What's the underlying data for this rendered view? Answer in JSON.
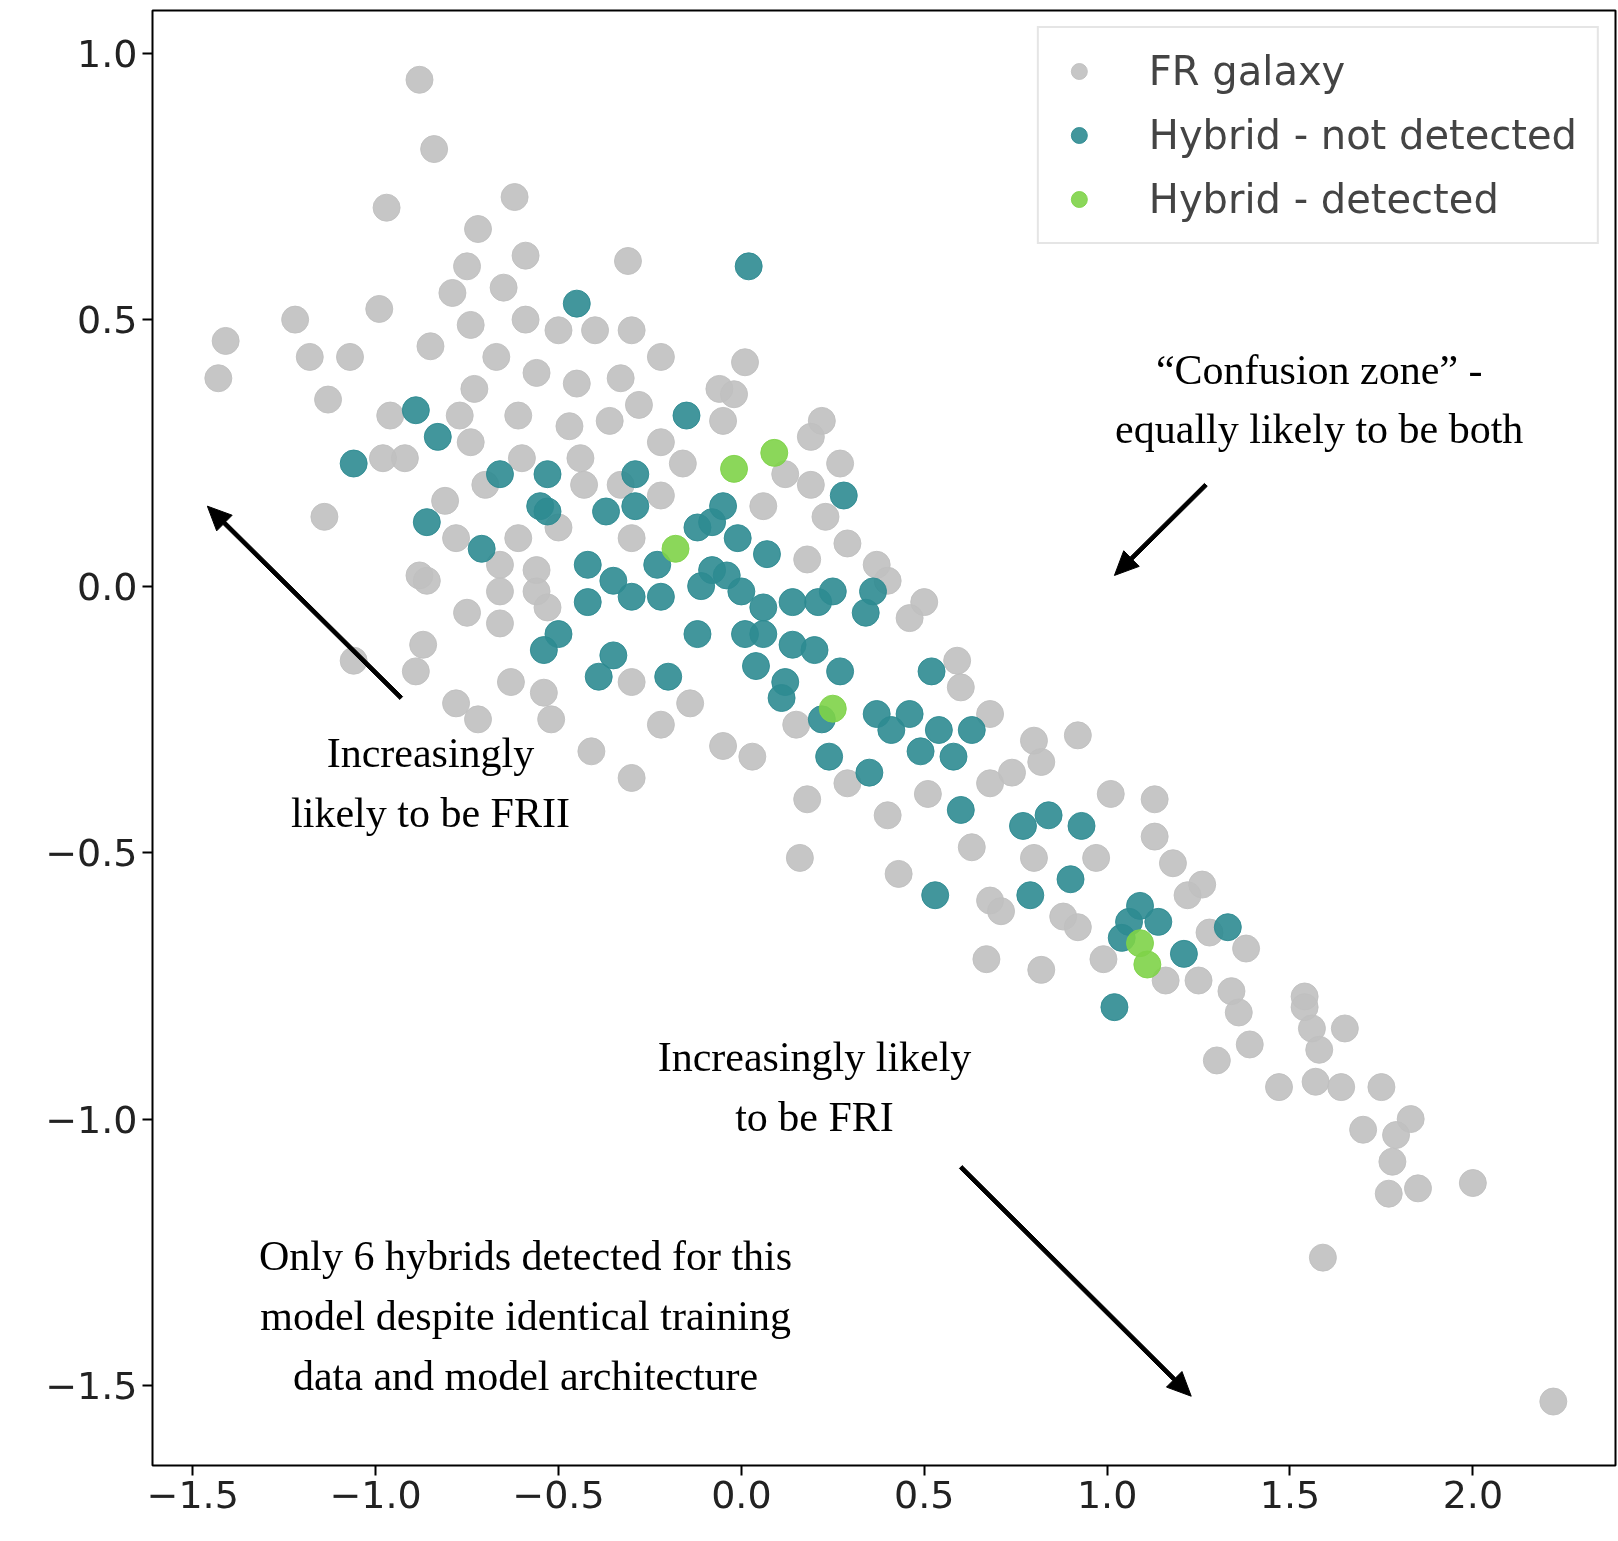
{
  "chart_data": {
    "type": "scatter",
    "xlim": [
      -1.61,
      2.39
    ],
    "ylim": [
      -1.65,
      1.08
    ],
    "xticks": [
      {
        "value": -1.5,
        "label": "−1.5"
      },
      {
        "value": -1.0,
        "label": "−1.0"
      },
      {
        "value": -0.5,
        "label": "−0.5"
      },
      {
        "value": 0.0,
        "label": "0.0"
      },
      {
        "value": 0.5,
        "label": "0.5"
      },
      {
        "value": 1.0,
        "label": "1.0"
      },
      {
        "value": 1.5,
        "label": "1.5"
      },
      {
        "value": 2.0,
        "label": "2.0"
      }
    ],
    "yticks": [
      {
        "value": -1.5,
        "label": "−1.5"
      },
      {
        "value": -1.0,
        "label": "−1.0"
      },
      {
        "value": -0.5,
        "label": "−0.5"
      },
      {
        "value": 0.0,
        "label": "0.0"
      },
      {
        "value": 0.5,
        "label": "0.5"
      },
      {
        "value": 1.0,
        "label": "1.0"
      }
    ],
    "grid": false,
    "legend": "top right",
    "marker": "circle",
    "annotations": [
      "“Confusion zone” -\nequally likely to be both",
      "Increasingly\nlikely to be FRII",
      "Increasingly likely\nto be FRI",
      "Only 6 hybrids detected for this\nmodel despite identical training\ndata and model architecture"
    ],
    "series": [
      {
        "name": "FR galaxy",
        "color": "#c0c0c0",
        "x": [
          -0.88,
          -0.84,
          -0.97,
          -0.62,
          -0.72,
          -0.59,
          -0.31,
          -0.75,
          -0.79,
          -0.65,
          -1.22,
          -0.99,
          -1.41,
          -1.43,
          -1.18,
          -1.07,
          -1.13,
          -0.85,
          -0.74,
          -0.59,
          -0.5,
          -0.4,
          -0.3,
          -0.22,
          0.01,
          -0.67,
          -0.56,
          -0.45,
          -0.33,
          -0.73,
          -0.96,
          -0.77,
          -0.61,
          -0.47,
          -0.36,
          -0.28,
          -0.06,
          -0.02,
          -0.05,
          -0.22,
          0.22,
          0.19,
          0.27,
          -0.92,
          -0.98,
          -0.74,
          -0.6,
          -0.44,
          -0.16,
          0.12,
          0.19,
          -0.81,
          -0.7,
          -1.14,
          -0.43,
          -0.33,
          -0.22,
          0.06,
          0.23,
          -0.78,
          -0.61,
          -0.5,
          -0.3,
          0.29,
          -0.88,
          -0.86,
          -0.66,
          -0.56,
          0.18,
          0.37,
          0.4,
          -0.66,
          -0.56,
          -0.75,
          -0.66,
          -0.53,
          0.5,
          0.46,
          -0.87,
          -1.06,
          -0.89,
          -0.78,
          -0.72,
          -0.63,
          -0.54,
          -0.52,
          -0.41,
          -0.3,
          -0.3,
          -0.22,
          -0.14,
          -0.05,
          0.03,
          0.15,
          0.59,
          0.6,
          0.68,
          0.8,
          0.92,
          0.18,
          0.16,
          0.29,
          0.4,
          0.43,
          0.51,
          0.68,
          0.74,
          0.82,
          1.01,
          1.13,
          0.63,
          0.8,
          0.97,
          1.13,
          1.18,
          0.68,
          0.71,
          0.88,
          1.22,
          1.26,
          0.67,
          0.82,
          0.92,
          0.99,
          1.28,
          1.38,
          1.16,
          1.25,
          1.34,
          1.36,
          1.39,
          1.3,
          1.54,
          1.54,
          1.56,
          1.65,
          1.58,
          1.47,
          1.57,
          1.64,
          1.75,
          1.83,
          1.7,
          1.79,
          1.78,
          1.77,
          1.85,
          2.0,
          1.59,
          2.22
        ],
        "values": [
          0.95,
          0.82,
          0.71,
          0.73,
          0.67,
          0.62,
          0.61,
          0.6,
          0.55,
          0.56,
          0.5,
          0.52,
          0.46,
          0.39,
          0.43,
          0.43,
          0.35,
          0.45,
          0.49,
          0.5,
          0.48,
          0.48,
          0.48,
          0.43,
          0.42,
          0.43,
          0.4,
          0.38,
          0.39,
          0.37,
          0.32,
          0.32,
          0.32,
          0.3,
          0.31,
          0.34,
          0.37,
          0.36,
          0.31,
          0.27,
          0.31,
          0.28,
          0.23,
          0.24,
          0.24,
          0.27,
          0.24,
          0.24,
          0.23,
          0.21,
          0.19,
          0.16,
          0.19,
          0.13,
          0.19,
          0.19,
          0.17,
          0.15,
          0.13,
          0.09,
          0.09,
          0.11,
          0.09,
          0.08,
          0.02,
          0.01,
          0.04,
          0.03,
          0.05,
          0.04,
          0.01,
          -0.01,
          -0.01,
          -0.05,
          -0.07,
          -0.04,
          -0.03,
          -0.06,
          -0.11,
          -0.14,
          -0.16,
          -0.22,
          -0.25,
          -0.18,
          -0.2,
          -0.25,
          -0.31,
          -0.18,
          -0.36,
          -0.26,
          -0.22,
          -0.3,
          -0.32,
          -0.26,
          -0.14,
          -0.19,
          -0.24,
          -0.29,
          -0.28,
          -0.4,
          -0.51,
          -0.37,
          -0.43,
          -0.54,
          -0.39,
          -0.37,
          -0.35,
          -0.33,
          -0.39,
          -0.4,
          -0.49,
          -0.51,
          -0.51,
          -0.47,
          -0.52,
          -0.59,
          -0.61,
          -0.62,
          -0.58,
          -0.56,
          -0.7,
          -0.72,
          -0.64,
          -0.7,
          -0.65,
          -0.68,
          -0.74,
          -0.74,
          -0.76,
          -0.8,
          -0.86,
          -0.89,
          -0.77,
          -0.79,
          -0.83,
          -0.83,
          -0.87,
          -0.94,
          -0.93,
          -0.94,
          -0.94,
          -1.0,
          -1.02,
          -1.03,
          -1.08,
          -1.14,
          -1.13,
          -1.12,
          -1.26,
          -1.53
        ]
      },
      {
        "name": "Hybrid - not detected",
        "color": "#2e8b91",
        "x": [
          0.02,
          -0.45,
          -0.89,
          -0.83,
          -1.06,
          -0.86,
          -0.71,
          -0.66,
          -0.53,
          -0.55,
          -0.53,
          -0.15,
          -0.29,
          -0.37,
          -0.29,
          -0.42,
          -0.42,
          -0.35,
          -0.3,
          -0.23,
          -0.22,
          -0.12,
          -0.08,
          -0.05,
          -0.01,
          0.07,
          -0.08,
          -0.04,
          -0.11,
          0.0,
          0.06,
          0.14,
          0.21,
          0.25,
          0.36,
          0.34,
          0.01,
          0.06,
          -0.12,
          -0.5,
          -0.54,
          -0.35,
          -0.39,
          -0.2,
          0.04,
          0.14,
          0.2,
          0.27,
          0.12,
          0.11,
          0.22,
          0.24,
          0.35,
          0.37,
          0.41,
          0.46,
          0.49,
          0.54,
          0.58,
          0.52,
          0.63,
          0.6,
          0.28,
          0.77,
          0.84,
          0.93,
          0.9,
          0.79,
          0.53,
          1.09,
          1.14,
          1.06,
          1.04,
          1.21,
          1.33,
          1.02
        ],
        "values": [
          0.6,
          0.53,
          0.33,
          0.28,
          0.23,
          0.12,
          0.07,
          0.21,
          0.21,
          0.15,
          0.14,
          0.32,
          0.21,
          0.14,
          0.15,
          0.04,
          -0.03,
          0.01,
          -0.02,
          0.04,
          -0.02,
          0.11,
          0.12,
          0.15,
          0.09,
          0.06,
          0.03,
          0.02,
          0.0,
          -0.01,
          -0.04,
          -0.03,
          -0.03,
          -0.01,
          -0.01,
          -0.05,
          -0.09,
          -0.09,
          -0.09,
          -0.09,
          -0.12,
          -0.13,
          -0.17,
          -0.17,
          -0.15,
          -0.11,
          -0.12,
          -0.16,
          -0.18,
          -0.21,
          -0.25,
          -0.32,
          -0.35,
          -0.24,
          -0.27,
          -0.24,
          -0.31,
          -0.27,
          -0.32,
          -0.16,
          -0.27,
          -0.42,
          0.17,
          -0.45,
          -0.43,
          -0.45,
          -0.55,
          -0.58,
          -0.58,
          -0.6,
          -0.63,
          -0.63,
          -0.66,
          -0.69,
          -0.64,
          -0.79
        ]
      },
      {
        "name": "Hybrid - detected",
        "color": "#7ed348",
        "x": [
          -0.02,
          0.09,
          -0.18,
          0.25,
          1.09,
          1.11
        ],
        "values": [
          0.22,
          0.25,
          0.07,
          -0.23,
          -0.67,
          -0.71
        ]
      }
    ]
  }
}
